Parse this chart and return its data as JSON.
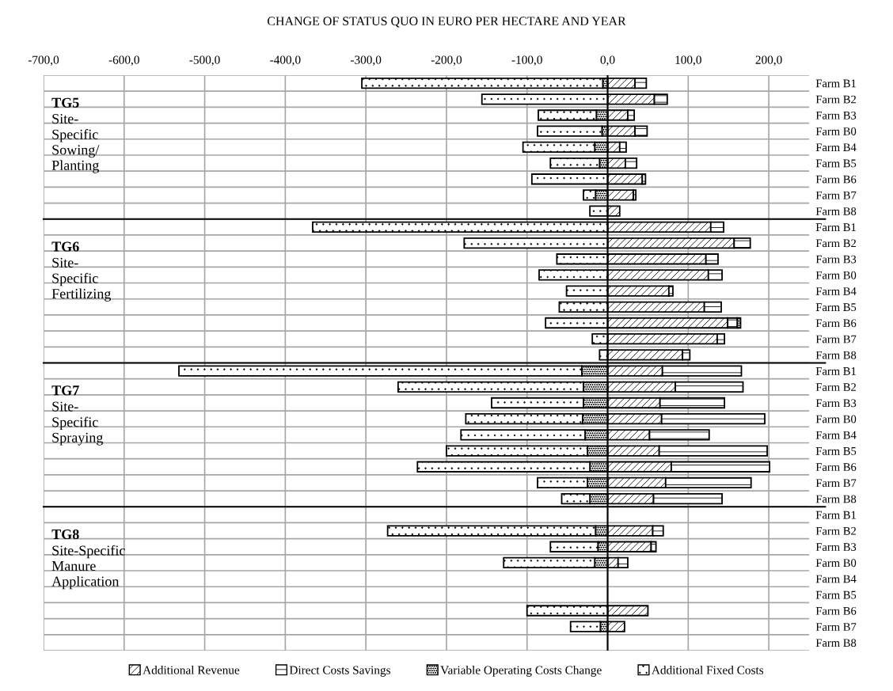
{
  "chart_data": {
    "type": "bar",
    "orientation": "horizontal",
    "stacked": true,
    "title": "CHANGE OF STATUS QUO IN EURO PER HECTARE AND YEAR",
    "categories": [
      "Farm B1",
      "Farm B2",
      "Farm B3",
      "Farm B0",
      "Farm B4",
      "Farm B5",
      "Farm B6",
      "Farm B7",
      "Farm B8",
      "Farm B1",
      "Farm B2",
      "Farm B3",
      "Farm B0",
      "Farm B4",
      "Farm B5",
      "Farm B6",
      "Farm B7",
      "Farm B8",
      "Farm B1",
      "Farm B2",
      "Farm B3",
      "Farm B0",
      "Farm B4",
      "Farm B5",
      "Farm B6",
      "Farm B7",
      "Farm B8",
      "Farm B1",
      "Farm B2",
      "Farm B3",
      "Farm B0",
      "Farm B4",
      "Farm B5",
      "Farm B6",
      "Farm B7",
      "Farm B8"
    ],
    "series": [
      {
        "name": "Additional Revenue",
        "color": "#000000",
        "values": [
          34,
          58,
          25,
          34,
          15,
          22,
          43,
          32,
          15,
          128,
          157,
          122,
          125,
          76,
          120,
          149,
          136,
          93,
          68,
          84,
          65,
          67,
          52,
          64,
          79,
          72,
          57,
          null,
          56,
          54,
          13,
          null,
          null,
          50,
          21,
          null
        ]
      },
      {
        "name": "Direct Costs Savings",
        "color": "#000000",
        "values": [
          14,
          16,
          8,
          15,
          8,
          14,
          4,
          3,
          null,
          16,
          20,
          15,
          17,
          5,
          21,
          12,
          9,
          9,
          98,
          84,
          80,
          128,
          74,
          134,
          122,
          106,
          85,
          null,
          13,
          6,
          12,
          null,
          null,
          null,
          null,
          null
        ]
      },
      {
        "name": "Variable Operating Costs Change",
        "color": "#000000",
        "values": [
          -6,
          null,
          -14,
          -7,
          -16,
          -10,
          null,
          -15,
          null,
          null,
          null,
          null,
          null,
          null,
          null,
          4,
          null,
          null,
          -32,
          -30,
          -30,
          -31,
          -28,
          -25,
          -22,
          -25,
          -22,
          null,
          -15,
          -12,
          -16,
          null,
          null,
          null,
          -9,
          null
        ]
      },
      {
        "name": "Additional Fixed Costs",
        "color": "#000000",
        "values": [
          -299,
          -156,
          -72,
          -80,
          -89,
          -61,
          -94,
          -15,
          -22,
          -366,
          -178,
          -63,
          -85,
          -51,
          -60,
          -77,
          -19,
          -10,
          -500,
          -230,
          -114,
          -145,
          -154,
          -175,
          -214,
          -62,
          -35,
          null,
          -258,
          -59,
          -113,
          null,
          null,
          -100,
          -37,
          null
        ]
      }
    ],
    "xlim": [
      -700,
      250
    ],
    "xticks": [
      {
        "value": -700,
        "label": "-700,0"
      },
      {
        "value": -600,
        "label": "-600,0"
      },
      {
        "value": -500,
        "label": "-500,0"
      },
      {
        "value": -400,
        "label": "-400,0"
      },
      {
        "value": -300,
        "label": "-300,0"
      },
      {
        "value": -200,
        "label": "-200,0"
      },
      {
        "value": -100,
        "label": "-100,0"
      },
      {
        "value": 0,
        "label": "0,0"
      },
      {
        "value": 100,
        "label": "100,0"
      },
      {
        "value": 200,
        "label": "200,0"
      }
    ],
    "annotations": [
      "TG5\nSite-\nSpecific\nSowing/\nPlanting",
      "TG6\nSite-\nSpecific\nFertilizing",
      "TG7\nSite-\nSpecific\nSpraying",
      "TG8\nSite-Specific\nManure\nApplication"
    ],
    "grid": true,
    "legend": "bottom"
  }
}
